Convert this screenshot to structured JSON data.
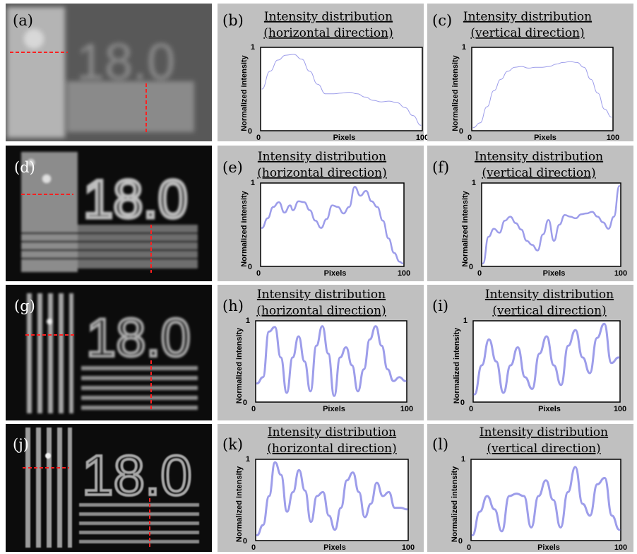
{
  "panel_labels": [
    "(a)",
    "(b)",
    "(c)",
    "(d)",
    "(e)",
    "(f)",
    "(g)",
    "(h)",
    "(i)",
    "(j)",
    "(k)",
    "(l)"
  ],
  "image_text": "18.0",
  "colors": {
    "panel_bg": "#c0c0c0",
    "trace": "#8c8ce6",
    "marker": "#ff2020"
  },
  "chart_data": [
    {
      "type": "line",
      "label": "(b)",
      "title_line1": "Intensity distribution",
      "title_line2": "(horizontal direction)",
      "xlabel": "Pixels",
      "ylabel": "Normalized intensity",
      "xlim": [
        0,
        100
      ],
      "ylim": [
        0,
        1
      ],
      "x_ticks": [
        "0",
        "100"
      ],
      "y_ticks": [
        "0",
        "1"
      ],
      "x": [
        0,
        5,
        10,
        15,
        20,
        25,
        30,
        35,
        40,
        45,
        50,
        55,
        60,
        65,
        70,
        75,
        80,
        85,
        90,
        95,
        100
      ],
      "y": [
        0.5,
        0.72,
        0.86,
        0.92,
        0.93,
        0.87,
        0.72,
        0.56,
        0.44,
        0.44,
        0.45,
        0.46,
        0.44,
        0.4,
        0.36,
        0.34,
        0.35,
        0.33,
        0.27,
        0.17,
        0.05
      ]
    },
    {
      "type": "line",
      "label": "(c)",
      "title_line1": "Intensity distribution",
      "title_line2": "(vertical direction)",
      "xlabel": "Pixels",
      "ylabel": "Normalized intensity",
      "xlim": [
        0,
        100
      ],
      "ylim": [
        0,
        1
      ],
      "x_ticks": [
        "0",
        "100"
      ],
      "y_ticks": [
        "0",
        "1"
      ],
      "x": [
        0,
        5,
        10,
        15,
        20,
        25,
        30,
        35,
        40,
        45,
        50,
        55,
        60,
        65,
        70,
        75,
        80,
        85,
        90,
        95,
        100
      ],
      "y": [
        0.02,
        0.08,
        0.28,
        0.48,
        0.62,
        0.72,
        0.77,
        0.78,
        0.76,
        0.77,
        0.77,
        0.78,
        0.81,
        0.83,
        0.84,
        0.83,
        0.77,
        0.62,
        0.45,
        0.25,
        0.15
      ]
    },
    {
      "type": "line",
      "label": "(e)",
      "title_line1": "Intensity distribution",
      "title_line2": "(horizontal direction)",
      "xlabel": "Pixels",
      "ylabel": "Normalized intensity",
      "xlim": [
        0,
        100
      ],
      "ylim": [
        0,
        1
      ],
      "x_ticks": [
        "0",
        "100"
      ],
      "y_ticks": [
        "0",
        "1"
      ],
      "x": [
        0,
        4,
        8,
        12,
        16,
        20,
        22,
        26,
        30,
        34,
        38,
        42,
        46,
        50,
        54,
        58,
        62,
        66,
        70,
        74,
        78,
        82,
        86,
        90,
        94,
        98,
        100
      ],
      "y": [
        0.46,
        0.58,
        0.72,
        0.78,
        0.65,
        0.74,
        0.68,
        0.79,
        0.78,
        0.68,
        0.55,
        0.46,
        0.57,
        0.74,
        0.72,
        0.64,
        0.72,
        0.97,
        0.86,
        0.92,
        0.79,
        0.72,
        0.55,
        0.33,
        0.15,
        0.04,
        0.02
      ]
    },
    {
      "type": "line",
      "label": "(f)",
      "title_line1": "Intensity distribution",
      "title_line2": "(vertical direction)",
      "xlabel": "Pixels",
      "ylabel": "Normalized intensity",
      "xlim": [
        0,
        100
      ],
      "ylim": [
        0,
        1
      ],
      "x_ticks": [
        "0",
        "100"
      ],
      "y_ticks": [
        "0",
        "1"
      ],
      "x": [
        0,
        4,
        8,
        12,
        16,
        20,
        24,
        28,
        32,
        36,
        40,
        44,
        48,
        52,
        56,
        60,
        64,
        68,
        72,
        76,
        80,
        84,
        88,
        92,
        96,
        100
      ],
      "y": [
        0.02,
        0.35,
        0.45,
        0.4,
        0.55,
        0.6,
        0.52,
        0.44,
        0.3,
        0.25,
        0.18,
        0.38,
        0.56,
        0.3,
        0.5,
        0.62,
        0.6,
        0.58,
        0.63,
        0.64,
        0.66,
        0.6,
        0.53,
        0.45,
        0.6,
        0.98
      ]
    },
    {
      "type": "line",
      "label": "(h)",
      "title_line1": "Intensity distribution",
      "title_line2": "(horizontal direction)",
      "xlabel": "Pixels",
      "ylabel": "Normalized intensity",
      "xlim": [
        0,
        100
      ],
      "ylim": [
        0,
        1
      ],
      "x_ticks": [
        "0",
        "100"
      ],
      "y_ticks": [
        "0",
        "1"
      ],
      "x": [
        0,
        4,
        8,
        12,
        16,
        20,
        24,
        28,
        32,
        36,
        40,
        44,
        48,
        52,
        56,
        60,
        64,
        68,
        72,
        76,
        80,
        84,
        88,
        92,
        96,
        100
      ],
      "y": [
        0.22,
        0.3,
        0.88,
        0.94,
        0.55,
        0.1,
        0.55,
        0.82,
        0.5,
        0.12,
        0.7,
        0.95,
        0.6,
        0.06,
        0.55,
        0.68,
        0.45,
        0.12,
        0.4,
        0.78,
        0.95,
        0.7,
        0.4,
        0.25,
        0.3,
        0.25
      ]
    },
    {
      "type": "line",
      "label": "(i)",
      "title_line1": "Intensity distribution",
      "title_line2": "(vertical direction)",
      "xlabel": "Pixels",
      "ylabel": "Normalized intensity",
      "xlim": [
        0,
        100
      ],
      "ylim": [
        0,
        1
      ],
      "x_ticks": [
        "0",
        "100"
      ],
      "y_ticks": [
        "0",
        "1"
      ],
      "x": [
        0,
        5,
        10,
        15,
        20,
        25,
        30,
        35,
        40,
        45,
        50,
        55,
        60,
        65,
        70,
        75,
        80,
        85,
        90,
        95,
        100
      ],
      "y": [
        0.08,
        0.45,
        0.78,
        0.5,
        0.1,
        0.45,
        0.68,
        0.3,
        0.15,
        0.6,
        0.82,
        0.45,
        0.2,
        0.7,
        0.9,
        0.55,
        0.35,
        0.8,
        0.98,
        0.48,
        0.55
      ]
    },
    {
      "type": "line",
      "label": "(k)",
      "title_line1": "Intensity distribution",
      "title_line2": "(horizontal direction)",
      "xlabel": "Pixels",
      "ylabel": "Normalized intensity",
      "xlim": [
        0,
        100
      ],
      "ylim": [
        0,
        1
      ],
      "x_ticks": [
        "0",
        "100"
      ],
      "y_ticks": [
        "0",
        "1"
      ],
      "x": [
        0,
        4,
        8,
        12,
        16,
        20,
        24,
        28,
        32,
        36,
        40,
        44,
        48,
        52,
        56,
        60,
        64,
        68,
        72,
        76,
        80,
        84,
        88,
        92,
        96,
        100
      ],
      "y": [
        0.05,
        0.18,
        0.55,
        0.98,
        0.82,
        0.35,
        0.6,
        0.88,
        0.62,
        0.22,
        0.55,
        0.6,
        0.3,
        0.12,
        0.4,
        0.75,
        0.85,
        0.6,
        0.28,
        0.45,
        0.72,
        0.55,
        0.6,
        0.4,
        0.4,
        0.38
      ]
    },
    {
      "type": "line",
      "label": "(l)",
      "title_line1": "Intensity distribution",
      "title_line2": "(vertical direction)",
      "xlabel": "Pixels",
      "ylabel": "Normalized intensity",
      "xlim": [
        0,
        100
      ],
      "ylim": [
        0,
        1
      ],
      "x_ticks": [
        "0",
        "100"
      ],
      "y_ticks": [
        "0",
        "1"
      ],
      "x": [
        0,
        5,
        10,
        15,
        20,
        25,
        30,
        35,
        40,
        45,
        50,
        55,
        60,
        65,
        70,
        75,
        80,
        85,
        90,
        95,
        100
      ],
      "y": [
        0.05,
        0.35,
        0.55,
        0.38,
        0.1,
        0.55,
        0.58,
        0.55,
        0.15,
        0.55,
        0.75,
        0.5,
        0.15,
        0.6,
        0.92,
        0.45,
        0.3,
        0.7,
        0.78,
        0.3,
        0.12
      ]
    }
  ]
}
